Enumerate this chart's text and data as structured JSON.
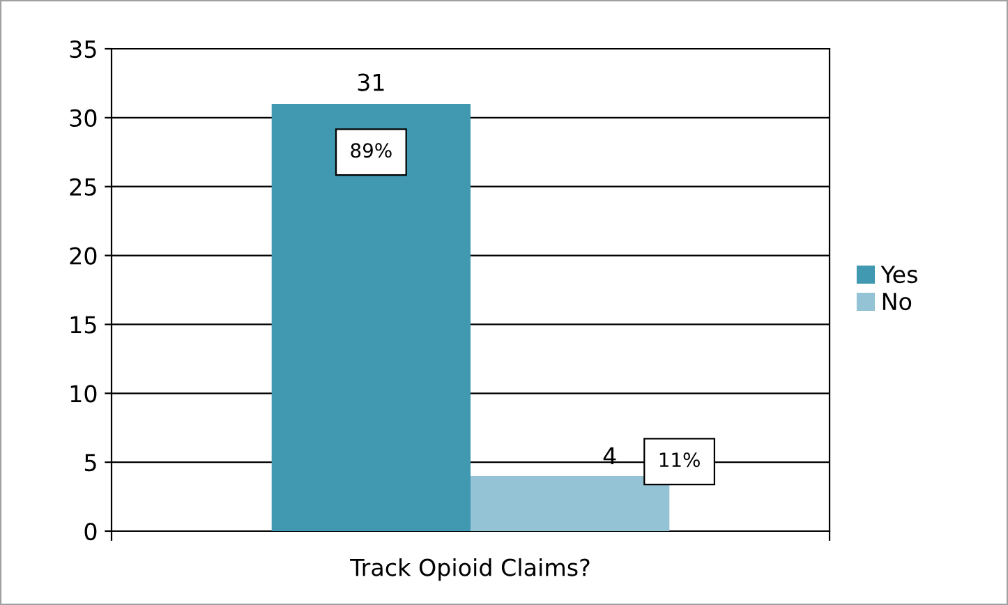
{
  "chart_data": {
    "type": "bar",
    "categories": [
      "Track Opioid Claims?"
    ],
    "series": [
      {
        "name": "Yes",
        "color": "#4199b1",
        "values": [
          31
        ]
      },
      {
        "name": "No",
        "color": "#93c3d4",
        "values": [
          4
        ]
      }
    ],
    "annotations": [
      "89%",
      "11%"
    ],
    "data_labels": true,
    "ylim": [
      0,
      35
    ],
    "yticks": [
      0,
      5,
      10,
      15,
      20,
      25,
      30,
      35
    ],
    "grid": "y",
    "legend": "right"
  }
}
